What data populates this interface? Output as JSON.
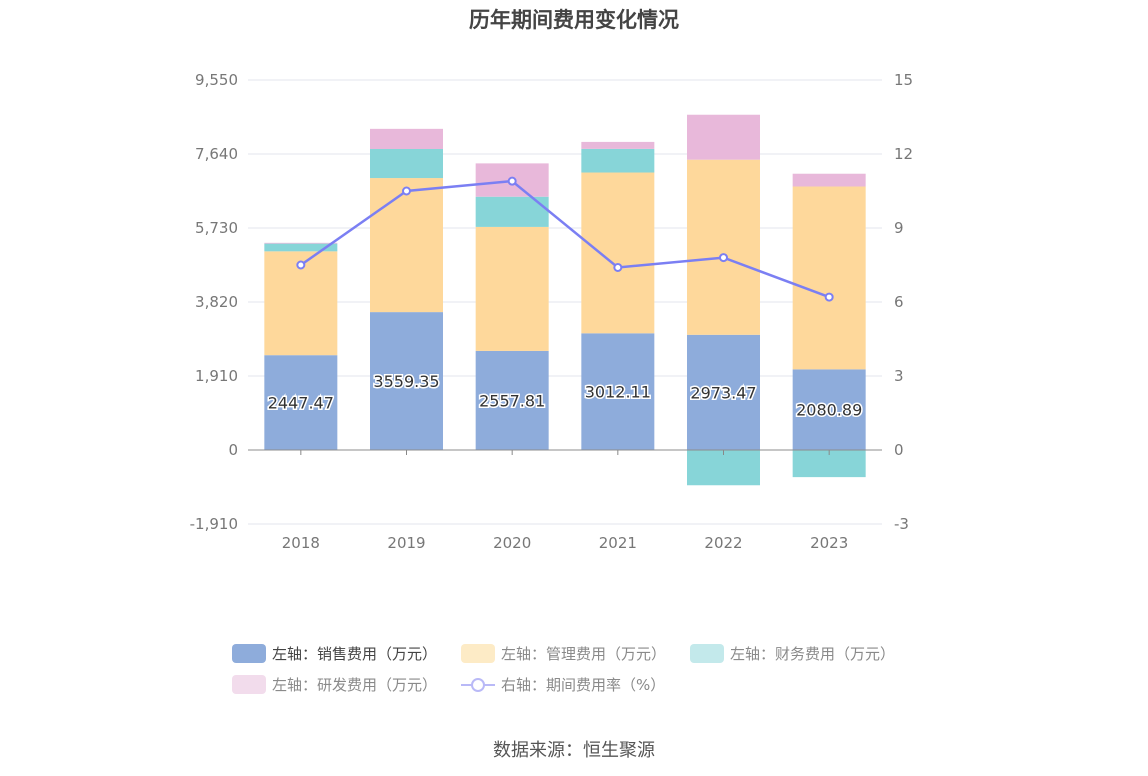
{
  "chart_data": {
    "type": "bar",
    "title": "历年期间费用变化情况",
    "categories": [
      "2018",
      "2019",
      "2020",
      "2021",
      "2022",
      "2023"
    ],
    "series": [
      {
        "name": "左轴：销售费用（万元）",
        "axis": "left",
        "color": "#8eacdb",
        "values": [
          2447.47,
          3559.35,
          2557.81,
          3012.11,
          2973.47,
          2080.89
        ]
      },
      {
        "name": "左轴：管理费用（万元）",
        "axis": "left",
        "color": "#fed89b",
        "values": [
          2680,
          3460,
          3200,
          4150,
          4520,
          4720
        ]
      },
      {
        "name": "左轴：财务费用（万元）",
        "axis": "left",
        "color": "#87d5d8",
        "values": [
          200,
          750,
          780,
          610,
          -910,
          -700
        ]
      },
      {
        "name": "左轴：研发费用（万元）",
        "axis": "left",
        "color": "#e8b8da",
        "values": [
          20,
          520,
          860,
          180,
          1160,
          330
        ]
      },
      {
        "name": "右轴：期间费用率（%）",
        "axis": "right",
        "type": "line",
        "color": "#7b7ff3",
        "values": [
          7.5,
          10.5,
          10.9,
          7.4,
          7.8,
          6.2
        ]
      }
    ],
    "left_axis": {
      "ylim": [
        -1910,
        9550
      ],
      "ticks": [
        -1910,
        0,
        1910,
        3820,
        5730,
        7640,
        9550
      ],
      "tick_labels": [
        "-1,910",
        "0",
        "1,910",
        "3,820",
        "5,730",
        "7,640",
        "9,550"
      ]
    },
    "right_axis": {
      "ylim": [
        -3,
        15
      ],
      "ticks": [
        -3,
        0,
        3,
        6,
        9,
        12,
        15
      ],
      "tick_labels": [
        "-3",
        "0",
        "3",
        "6",
        "9",
        "12",
        "15"
      ]
    },
    "data_labels": [
      "2447.47",
      "3559.35",
      "2557.81",
      "3012.11",
      "2973.47",
      "2080.89"
    ],
    "grid": true,
    "legend_position": "bottom"
  },
  "legend": {
    "row1": [
      "左轴：销售费用（万元）",
      "左轴：管理费用（万元）",
      "左轴：财务费用（万元）"
    ],
    "row2": [
      "左轴：研发费用（万元）",
      "右轴：期间费用率（%）"
    ]
  },
  "source": "数据来源：恒生聚源"
}
